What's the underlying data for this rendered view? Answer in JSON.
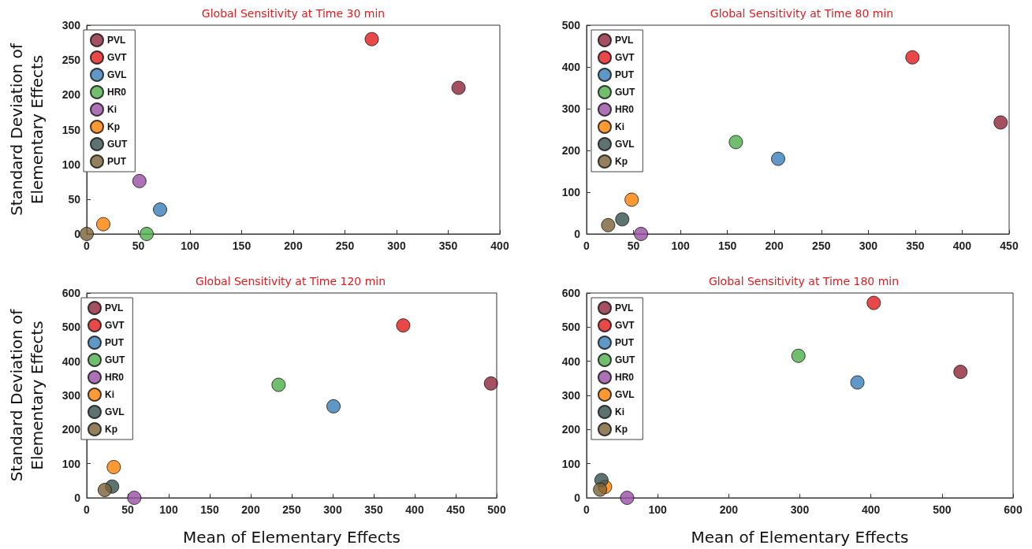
{
  "chart_data": [
    {
      "type": "scatter",
      "title": "Global Sensitivity at Time 30 min",
      "ylabel": "Standard Deviation of\nElementary Effects",
      "xlim": [
        0,
        400
      ],
      "ylim": [
        0,
        300
      ],
      "xticks": [
        0,
        50,
        100,
        150,
        200,
        250,
        300,
        350,
        400
      ],
      "yticks": [
        0,
        50,
        100,
        150,
        200,
        250,
        300
      ],
      "legend": "top left",
      "marker": "circle",
      "grid": false,
      "series": [
        {
          "name": "PVL",
          "color": "#8e2438",
          "x": [
            360
          ],
          "values": [
            210
          ]
        },
        {
          "name": "GVT",
          "color": "#e41a1c",
          "x": [
            276
          ],
          "values": [
            280
          ]
        },
        {
          "name": "GVL",
          "color": "#377eb8",
          "x": [
            71
          ],
          "values": [
            35
          ]
        },
        {
          "name": "HR0",
          "color": "#4daf4a",
          "x": [
            58
          ],
          "values": [
            0
          ]
        },
        {
          "name": "Ki",
          "color": "#984ea3",
          "x": [
            51
          ],
          "values": [
            76
          ]
        },
        {
          "name": "Kp",
          "color": "#ff7f00",
          "x": [
            16
          ],
          "values": [
            14
          ]
        },
        {
          "name": "GUT",
          "color": "#35504f",
          "x": [
            null
          ],
          "values": [
            null
          ]
        },
        {
          "name": "PUT",
          "color": "#7a6036",
          "x": [
            0
          ],
          "values": [
            0
          ]
        }
      ]
    },
    {
      "type": "scatter",
      "title": "Global Sensitivity at Time 80 min",
      "xlim": [
        0,
        450
      ],
      "ylim": [
        0,
        500
      ],
      "xticks": [
        0,
        50,
        100,
        150,
        200,
        250,
        300,
        350,
        400,
        450
      ],
      "yticks": [
        0,
        100,
        200,
        300,
        400,
        500
      ],
      "legend": "top left",
      "marker": "circle",
      "grid": false,
      "series": [
        {
          "name": "PVL",
          "color": "#8e2438",
          "x": [
            441
          ],
          "values": [
            267
          ]
        },
        {
          "name": "GVT",
          "color": "#e41a1c",
          "x": [
            347
          ],
          "values": [
            423
          ]
        },
        {
          "name": "PUT",
          "color": "#377eb8",
          "x": [
            204
          ],
          "values": [
            180
          ]
        },
        {
          "name": "GUT",
          "color": "#4daf4a",
          "x": [
            159
          ],
          "values": [
            220
          ]
        },
        {
          "name": "HR0",
          "color": "#984ea3",
          "x": [
            58
          ],
          "values": [
            0
          ]
        },
        {
          "name": "Ki",
          "color": "#ff7f00",
          "x": [
            48
          ],
          "values": [
            82
          ]
        },
        {
          "name": "GVL",
          "color": "#35504f",
          "x": [
            38
          ],
          "values": [
            35
          ]
        },
        {
          "name": "Kp",
          "color": "#7a6036",
          "x": [
            23
          ],
          "values": [
            21
          ]
        }
      ]
    },
    {
      "type": "scatter",
      "title": "Global Sensitivity at Time 120 min",
      "xlabel": "Mean of Elementary Effects",
      "ylabel": "Standard Deviation of\nElementary Effects",
      "xlim": [
        0,
        500
      ],
      "ylim": [
        0,
        600
      ],
      "xticks": [
        0,
        50,
        100,
        150,
        200,
        250,
        300,
        350,
        400,
        450,
        500
      ],
      "yticks": [
        0,
        100,
        200,
        300,
        400,
        500,
        600
      ],
      "legend": "top left",
      "marker": "circle",
      "grid": false,
      "series": [
        {
          "name": "PVL",
          "color": "#8e2438",
          "x": [
            493
          ],
          "values": [
            335
          ]
        },
        {
          "name": "GVT",
          "color": "#e41a1c",
          "x": [
            386
          ],
          "values": [
            505
          ]
        },
        {
          "name": "PUT",
          "color": "#377eb8",
          "x": [
            301
          ],
          "values": [
            268
          ]
        },
        {
          "name": "GUT",
          "color": "#4daf4a",
          "x": [
            234
          ],
          "values": [
            331
          ]
        },
        {
          "name": "HR0",
          "color": "#984ea3",
          "x": [
            58
          ],
          "values": [
            0
          ]
        },
        {
          "name": "Ki",
          "color": "#ff7f00",
          "x": [
            33
          ],
          "values": [
            90
          ]
        },
        {
          "name": "GVL",
          "color": "#35504f",
          "x": [
            31
          ],
          "values": [
            33
          ]
        },
        {
          "name": "Kp",
          "color": "#7a6036",
          "x": [
            22
          ],
          "values": [
            23
          ]
        }
      ]
    },
    {
      "type": "scatter",
      "title": "Global Sensitivity at Time 180 min",
      "xlabel": "Mean of Elementary Effects",
      "xlim": [
        0,
        600
      ],
      "ylim": [
        0,
        600
      ],
      "xticks": [
        0,
        100,
        200,
        300,
        400,
        500,
        600
      ],
      "yticks": [
        0,
        100,
        200,
        300,
        400,
        500,
        600
      ],
      "legend": "top left",
      "marker": "circle",
      "grid": false,
      "series": [
        {
          "name": "PVL",
          "color": "#8e2438",
          "x": [
            526
          ],
          "values": [
            369
          ]
        },
        {
          "name": "GVT",
          "color": "#e41a1c",
          "x": [
            404
          ],
          "values": [
            571
          ]
        },
        {
          "name": "PUT",
          "color": "#377eb8",
          "x": [
            381
          ],
          "values": [
            338
          ]
        },
        {
          "name": "GUT",
          "color": "#4daf4a",
          "x": [
            298
          ],
          "values": [
            416
          ]
        },
        {
          "name": "HR0",
          "color": "#984ea3",
          "x": [
            57
          ],
          "values": [
            0
          ]
        },
        {
          "name": "GVL",
          "color": "#ff7f00",
          "x": [
            26
          ],
          "values": [
            32
          ]
        },
        {
          "name": "Ki",
          "color": "#35504f",
          "x": [
            21
          ],
          "values": [
            52
          ]
        },
        {
          "name": "Kp",
          "color": "#7a6036",
          "x": [
            19
          ],
          "values": [
            24
          ]
        }
      ]
    }
  ]
}
